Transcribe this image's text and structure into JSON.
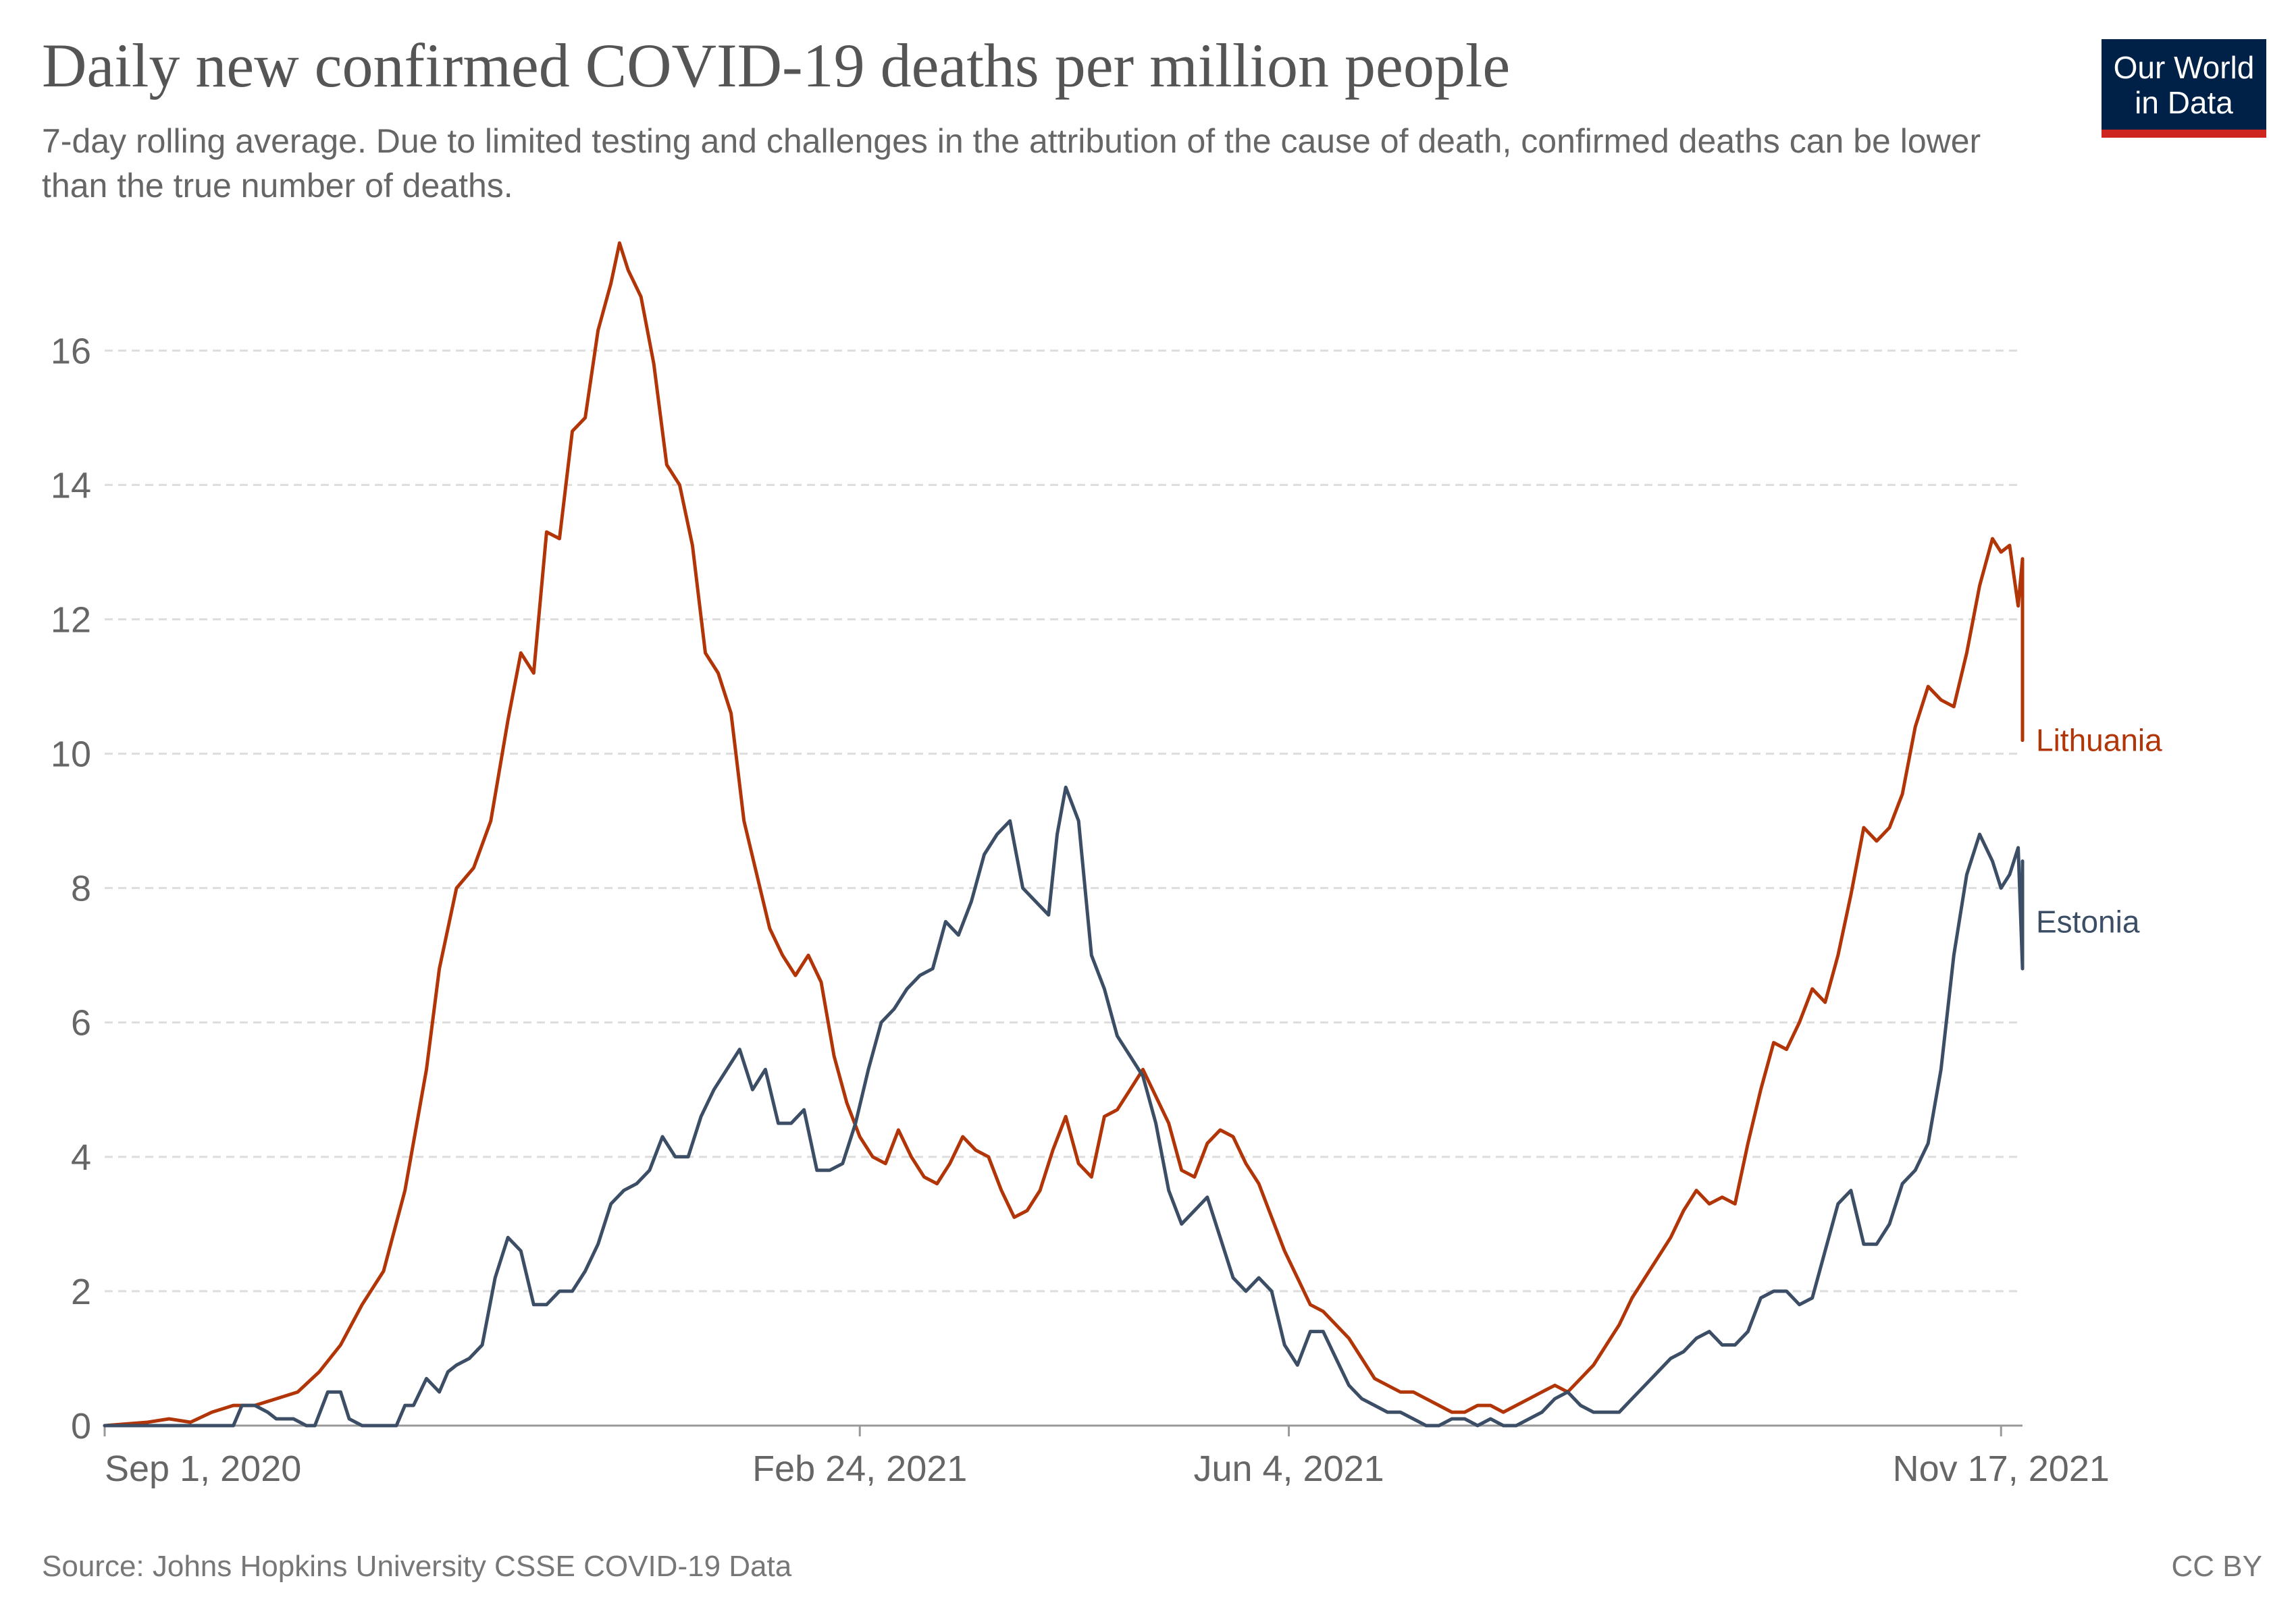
{
  "header": {
    "title": "Daily new confirmed COVID-19 deaths per million people",
    "subtitle": "7-day rolling average. Due to limited testing and challenges in the attribution of the cause of death, confirmed deaths can be lower than the true number of deaths."
  },
  "logo": {
    "line1": "Our World",
    "line2": "in Data"
  },
  "footer": {
    "source": "Source: Johns Hopkins University CSSE COVID-19 Data",
    "license": "CC BY"
  },
  "chart_data": {
    "type": "line",
    "title": "Daily new confirmed COVID-19 deaths per million people",
    "xlabel": "",
    "ylabel": "",
    "ylim": [
      0,
      17.5
    ],
    "yticks": [
      0,
      2,
      4,
      6,
      8,
      10,
      12,
      14,
      16
    ],
    "xlim_days": [
      0,
      447
    ],
    "xticks": [
      {
        "day": 0,
        "label": "Sep 1, 2020"
      },
      {
        "day": 176,
        "label": "Feb 24, 2021"
      },
      {
        "day": 276,
        "label": "Jun 4, 2021"
      },
      {
        "day": 442,
        "label": "Nov 17, 2021"
      }
    ],
    "grid": true,
    "series": [
      {
        "name": "Lithuania",
        "color": "#b13507",
        "points": [
          [
            0,
            0.0
          ],
          [
            10,
            0.05
          ],
          [
            15,
            0.1
          ],
          [
            20,
            0.05
          ],
          [
            25,
            0.2
          ],
          [
            30,
            0.3
          ],
          [
            35,
            0.3
          ],
          [
            40,
            0.4
          ],
          [
            45,
            0.5
          ],
          [
            50,
            0.8
          ],
          [
            55,
            1.2
          ],
          [
            60,
            1.8
          ],
          [
            65,
            2.3
          ],
          [
            70,
            3.5
          ],
          [
            75,
            5.3
          ],
          [
            78,
            6.8
          ],
          [
            82,
            8.0
          ],
          [
            86,
            8.3
          ],
          [
            90,
            9.0
          ],
          [
            94,
            10.5
          ],
          [
            97,
            11.5
          ],
          [
            100,
            11.2
          ],
          [
            103,
            13.3
          ],
          [
            106,
            13.2
          ],
          [
            109,
            14.8
          ],
          [
            112,
            15.0
          ],
          [
            115,
            16.3
          ],
          [
            118,
            17.0
          ],
          [
            120,
            17.6
          ],
          [
            122,
            17.2
          ],
          [
            125,
            16.8
          ],
          [
            128,
            15.8
          ],
          [
            131,
            14.3
          ],
          [
            134,
            14.0
          ],
          [
            137,
            13.1
          ],
          [
            140,
            11.5
          ],
          [
            143,
            11.2
          ],
          [
            146,
            10.6
          ],
          [
            149,
            9.0
          ],
          [
            152,
            8.2
          ],
          [
            155,
            7.4
          ],
          [
            158,
            7.0
          ],
          [
            161,
            6.7
          ],
          [
            164,
            7.0
          ],
          [
            167,
            6.6
          ],
          [
            170,
            5.5
          ],
          [
            173,
            4.8
          ],
          [
            176,
            4.3
          ],
          [
            179,
            4.0
          ],
          [
            182,
            3.9
          ],
          [
            185,
            4.4
          ],
          [
            188,
            4.0
          ],
          [
            191,
            3.7
          ],
          [
            194,
            3.6
          ],
          [
            197,
            3.9
          ],
          [
            200,
            4.3
          ],
          [
            203,
            4.1
          ],
          [
            206,
            4.0
          ],
          [
            209,
            3.5
          ],
          [
            212,
            3.1
          ],
          [
            215,
            3.2
          ],
          [
            218,
            3.5
          ],
          [
            221,
            4.1
          ],
          [
            224,
            4.6
          ],
          [
            227,
            3.9
          ],
          [
            230,
            3.7
          ],
          [
            233,
            4.6
          ],
          [
            236,
            4.7
          ],
          [
            239,
            5.0
          ],
          [
            242,
            5.3
          ],
          [
            245,
            4.9
          ],
          [
            248,
            4.5
          ],
          [
            251,
            3.8
          ],
          [
            254,
            3.7
          ],
          [
            257,
            4.2
          ],
          [
            260,
            4.4
          ],
          [
            263,
            4.3
          ],
          [
            266,
            3.9
          ],
          [
            269,
            3.6
          ],
          [
            272,
            3.1
          ],
          [
            275,
            2.6
          ],
          [
            278,
            2.2
          ],
          [
            281,
            1.8
          ],
          [
            284,
            1.7
          ],
          [
            287,
            1.5
          ],
          [
            290,
            1.3
          ],
          [
            293,
            1.0
          ],
          [
            296,
            0.7
          ],
          [
            299,
            0.6
          ],
          [
            302,
            0.5
          ],
          [
            305,
            0.5
          ],
          [
            308,
            0.4
          ],
          [
            311,
            0.3
          ],
          [
            314,
            0.2
          ],
          [
            317,
            0.2
          ],
          [
            320,
            0.3
          ],
          [
            323,
            0.3
          ],
          [
            326,
            0.2
          ],
          [
            329,
            0.3
          ],
          [
            332,
            0.4
          ],
          [
            335,
            0.5
          ],
          [
            338,
            0.6
          ],
          [
            341,
            0.5
          ],
          [
            344,
            0.7
          ],
          [
            347,
            0.9
          ],
          [
            350,
            1.2
          ],
          [
            353,
            1.5
          ],
          [
            356,
            1.9
          ],
          [
            359,
            2.2
          ],
          [
            362,
            2.5
          ],
          [
            365,
            2.8
          ],
          [
            368,
            3.2
          ],
          [
            371,
            3.5
          ],
          [
            374,
            3.3
          ],
          [
            377,
            3.4
          ],
          [
            380,
            3.3
          ],
          [
            383,
            4.2
          ],
          [
            386,
            5.0
          ],
          [
            389,
            5.7
          ],
          [
            392,
            5.6
          ],
          [
            395,
            6.0
          ],
          [
            398,
            6.5
          ],
          [
            401,
            6.3
          ],
          [
            404,
            7.0
          ],
          [
            407,
            7.9
          ],
          [
            410,
            8.9
          ],
          [
            413,
            8.7
          ],
          [
            416,
            8.9
          ],
          [
            419,
            9.4
          ],
          [
            422,
            10.4
          ],
          [
            425,
            11.0
          ],
          [
            428,
            10.8
          ],
          [
            431,
            10.7
          ],
          [
            434,
            11.5
          ],
          [
            437,
            12.5
          ],
          [
            440,
            13.2
          ],
          [
            442,
            13.0
          ],
          [
            444,
            13.1
          ],
          [
            446,
            12.2
          ],
          [
            448,
            12.9
          ],
          [
            450,
            12.6
          ],
          [
            452,
            11.2
          ],
          [
            454,
            10.9
          ],
          [
            456,
            10.9
          ],
          [
            458,
            10.2
          ]
        ]
      },
      {
        "name": "Estonia",
        "color": "#3c4e66",
        "points": [
          [
            0,
            0.0
          ],
          [
            15,
            0.0
          ],
          [
            22,
            0.0
          ],
          [
            30,
            0.0
          ],
          [
            32,
            0.3
          ],
          [
            35,
            0.3
          ],
          [
            38,
            0.2
          ],
          [
            40,
            0.1
          ],
          [
            44,
            0.1
          ],
          [
            47,
            0.0
          ],
          [
            49,
            0.0
          ],
          [
            52,
            0.5
          ],
          [
            55,
            0.5
          ],
          [
            57,
            0.1
          ],
          [
            60,
            0.0
          ],
          [
            65,
            0.0
          ],
          [
            68,
            0.0
          ],
          [
            70,
            0.3
          ],
          [
            72,
            0.3
          ],
          [
            75,
            0.7
          ],
          [
            78,
            0.5
          ],
          [
            80,
            0.8
          ],
          [
            82,
            0.9
          ],
          [
            85,
            1.0
          ],
          [
            88,
            1.2
          ],
          [
            91,
            2.2
          ],
          [
            94,
            2.8
          ],
          [
            97,
            2.6
          ],
          [
            100,
            1.8
          ],
          [
            103,
            1.8
          ],
          [
            106,
            2.0
          ],
          [
            109,
            2.0
          ],
          [
            112,
            2.3
          ],
          [
            115,
            2.7
          ],
          [
            118,
            3.3
          ],
          [
            121,
            3.5
          ],
          [
            124,
            3.6
          ],
          [
            127,
            3.8
          ],
          [
            130,
            4.3
          ],
          [
            133,
            4.0
          ],
          [
            136,
            4.0
          ],
          [
            139,
            4.6
          ],
          [
            142,
            5.0
          ],
          [
            145,
            5.3
          ],
          [
            148,
            5.6
          ],
          [
            151,
            5.0
          ],
          [
            154,
            5.3
          ],
          [
            157,
            4.5
          ],
          [
            160,
            4.5
          ],
          [
            163,
            4.7
          ],
          [
            166,
            3.8
          ],
          [
            169,
            3.8
          ],
          [
            172,
            3.9
          ],
          [
            175,
            4.5
          ],
          [
            178,
            5.3
          ],
          [
            181,
            6.0
          ],
          [
            184,
            6.2
          ],
          [
            187,
            6.5
          ],
          [
            190,
            6.7
          ],
          [
            193,
            6.8
          ],
          [
            196,
            7.5
          ],
          [
            199,
            7.3
          ],
          [
            202,
            7.8
          ],
          [
            205,
            8.5
          ],
          [
            208,
            8.8
          ],
          [
            211,
            9.0
          ],
          [
            214,
            8.0
          ],
          [
            217,
            7.8
          ],
          [
            220,
            7.6
          ],
          [
            222,
            8.8
          ],
          [
            224,
            9.5
          ],
          [
            227,
            9.0
          ],
          [
            230,
            7.0
          ],
          [
            233,
            6.5
          ],
          [
            236,
            5.8
          ],
          [
            239,
            5.5
          ],
          [
            242,
            5.2
          ],
          [
            245,
            4.5
          ],
          [
            248,
            3.5
          ],
          [
            251,
            3.0
          ],
          [
            254,
            3.2
          ],
          [
            257,
            3.4
          ],
          [
            260,
            2.8
          ],
          [
            263,
            2.2
          ],
          [
            266,
            2.0
          ],
          [
            269,
            2.2
          ],
          [
            272,
            2.0
          ],
          [
            275,
            1.2
          ],
          [
            278,
            0.9
          ],
          [
            281,
            1.4
          ],
          [
            284,
            1.4
          ],
          [
            287,
            1.0
          ],
          [
            290,
            0.6
          ],
          [
            293,
            0.4
          ],
          [
            296,
            0.3
          ],
          [
            299,
            0.2
          ],
          [
            302,
            0.2
          ],
          [
            305,
            0.1
          ],
          [
            308,
            0.0
          ],
          [
            311,
            0.0
          ],
          [
            314,
            0.1
          ],
          [
            317,
            0.1
          ],
          [
            320,
            0.0
          ],
          [
            323,
            0.1
          ],
          [
            326,
            0.0
          ],
          [
            329,
            0.0
          ],
          [
            332,
            0.1
          ],
          [
            335,
            0.2
          ],
          [
            338,
            0.4
          ],
          [
            341,
            0.5
          ],
          [
            344,
            0.3
          ],
          [
            347,
            0.2
          ],
          [
            350,
            0.2
          ],
          [
            353,
            0.2
          ],
          [
            356,
            0.4
          ],
          [
            359,
            0.6
          ],
          [
            362,
            0.8
          ],
          [
            365,
            1.0
          ],
          [
            368,
            1.1
          ],
          [
            371,
            1.3
          ],
          [
            374,
            1.4
          ],
          [
            377,
            1.2
          ],
          [
            380,
            1.2
          ],
          [
            383,
            1.4
          ],
          [
            386,
            1.9
          ],
          [
            389,
            2.0
          ],
          [
            392,
            2.0
          ],
          [
            395,
            1.8
          ],
          [
            398,
            1.9
          ],
          [
            401,
            2.6
          ],
          [
            404,
            3.3
          ],
          [
            407,
            3.5
          ],
          [
            410,
            2.7
          ],
          [
            413,
            2.7
          ],
          [
            416,
            3.0
          ],
          [
            419,
            3.6
          ],
          [
            422,
            3.8
          ],
          [
            425,
            4.2
          ],
          [
            428,
            5.3
          ],
          [
            431,
            7.0
          ],
          [
            434,
            8.2
          ],
          [
            437,
            8.8
          ],
          [
            440,
            8.4
          ],
          [
            442,
            8.0
          ],
          [
            444,
            8.2
          ],
          [
            446,
            8.6
          ],
          [
            448,
            6.8
          ],
          [
            450,
            8.4
          ],
          [
            452,
            7.5
          ]
        ]
      }
    ]
  }
}
